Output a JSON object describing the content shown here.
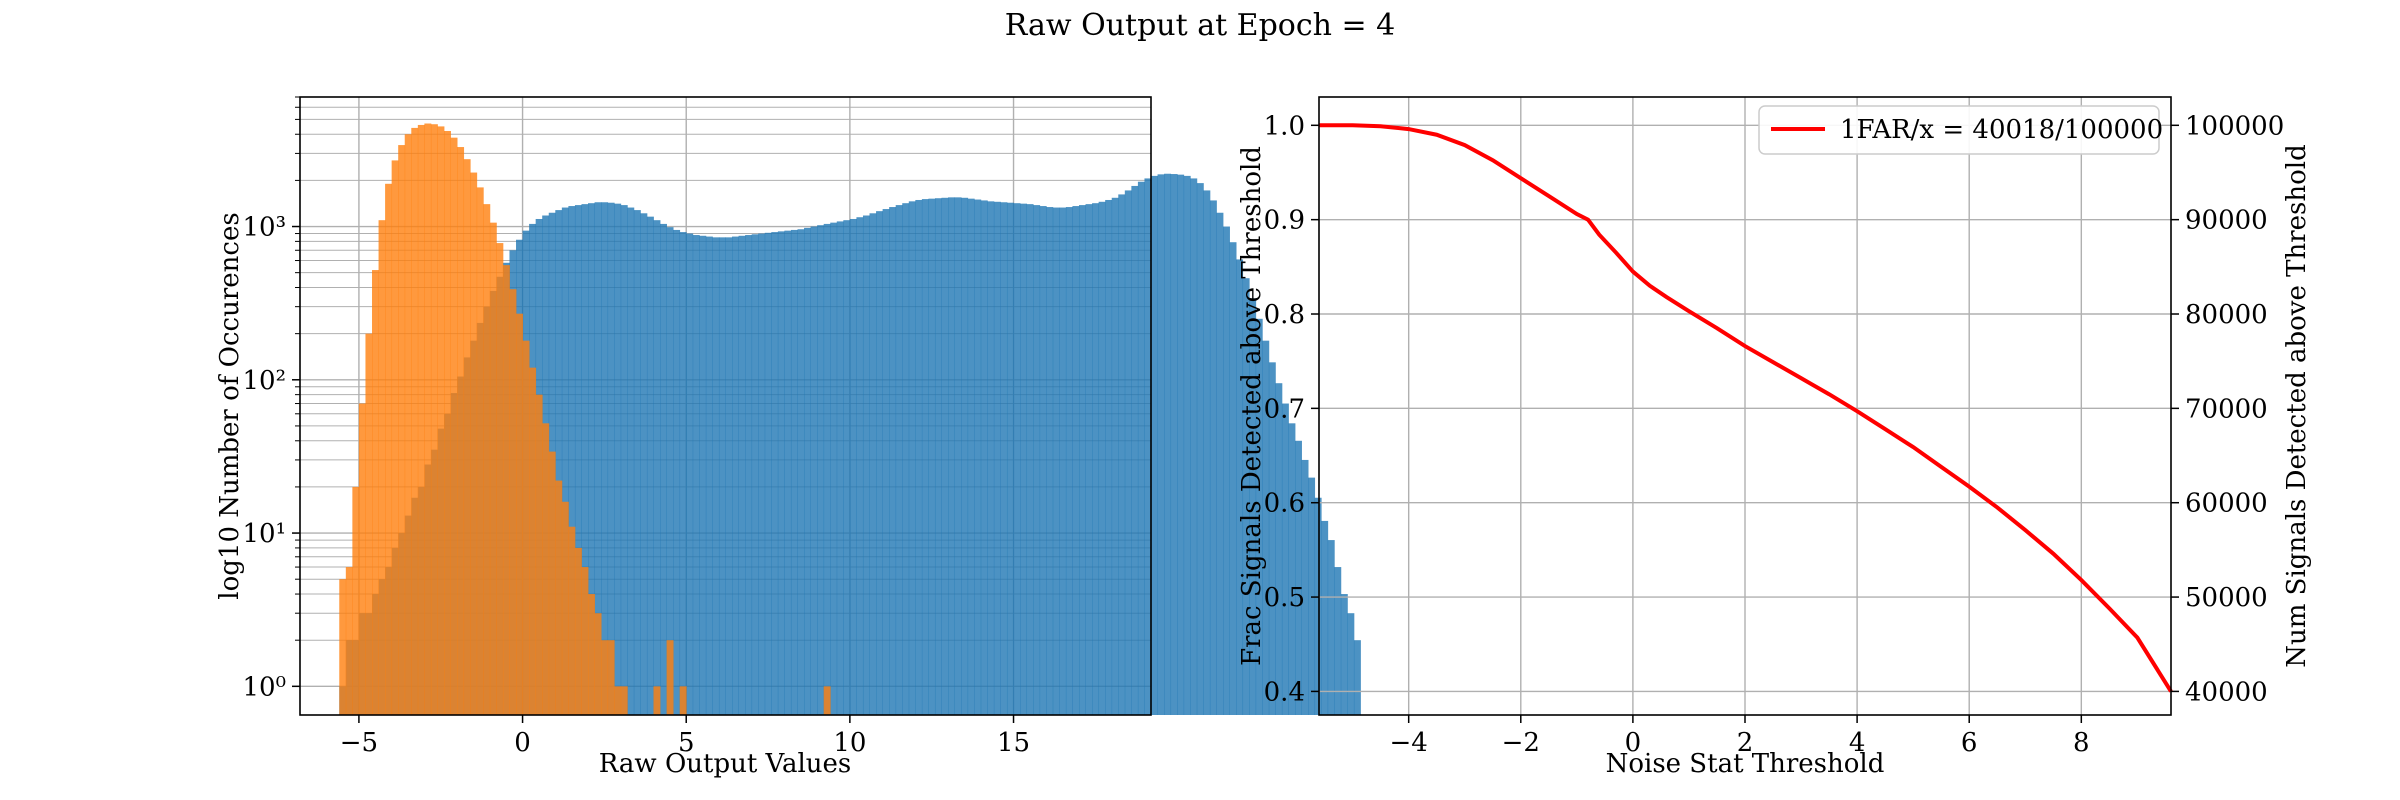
{
  "figure": {
    "suptitle": "Raw Output at Epoch = 4"
  },
  "colors": {
    "blue": "#1f77b4",
    "orange": "#ff7f0e",
    "red": "#ff0000",
    "grid": "#b0b0b0"
  },
  "chart_data": [
    {
      "type": "histogram",
      "title": "",
      "xlabel": "Raw Output Values",
      "ylabel": "log10 Number of Occurences",
      "xlim": [
        -6.8,
        19.2
      ],
      "ylim": [
        0.65,
        7000
      ],
      "yscale": "log",
      "xticks": [
        -5,
        0,
        5,
        10,
        15
      ],
      "xtick_labels": [
        "−5",
        "0",
        "5",
        "10",
        "15"
      ],
      "yticks": [
        1,
        10,
        100,
        1000
      ],
      "ytick_labels": [
        "10⁰",
        "10¹",
        "10²",
        "10³"
      ],
      "grid": true,
      "bins": {
        "start": -5.6,
        "width": 0.2
      },
      "series": [
        {
          "color": "#1f77b4",
          "alpha": 0.8,
          "counts": [
            1,
            2,
            2,
            3,
            3,
            4,
            5,
            6,
            8,
            10,
            13,
            17,
            20,
            28,
            35,
            48,
            60,
            82,
            105,
            140,
            180,
            235,
            300,
            380,
            470,
            580,
            700,
            820,
            940,
            1040,
            1120,
            1180,
            1230,
            1280,
            1330,
            1360,
            1380,
            1400,
            1420,
            1440,
            1440,
            1430,
            1410,
            1380,
            1330,
            1280,
            1220,
            1160,
            1100,
            1040,
            990,
            950,
            920,
            900,
            880,
            870,
            860,
            850,
            850,
            850,
            860,
            870,
            880,
            890,
            900,
            910,
            920,
            930,
            940,
            950,
            960,
            980,
            1000,
            1020,
            1040,
            1060,
            1080,
            1100,
            1120,
            1150,
            1180,
            1220,
            1260,
            1300,
            1340,
            1380,
            1420,
            1460,
            1490,
            1510,
            1520,
            1530,
            1540,
            1550,
            1550,
            1540,
            1520,
            1500,
            1480,
            1460,
            1450,
            1440,
            1430,
            1420,
            1410,
            1400,
            1380,
            1360,
            1340,
            1330,
            1330,
            1340,
            1360,
            1380,
            1400,
            1420,
            1450,
            1490,
            1540,
            1620,
            1720,
            1840,
            1960,
            2060,
            2140,
            2190,
            2210,
            2200,
            2180,
            2140,
            2060,
            1920,
            1720,
            1480,
            1230,
            1000,
            790,
            610,
            460,
            340,
            250,
            180,
            130,
            95,
            70,
            52,
            40,
            30,
            23,
            17,
            12,
            9,
            6,
            4,
            3,
            2
          ]
        },
        {
          "color": "#ff7f0e",
          "alpha": 0.8,
          "counts": [
            5,
            6,
            20,
            70,
            200,
            520,
            1100,
            1900,
            2700,
            3400,
            4000,
            4400,
            4600,
            4700,
            4650,
            4500,
            4200,
            3800,
            3300,
            2750,
            2250,
            1800,
            1400,
            1060,
            780,
            560,
            390,
            270,
            180,
            120,
            80,
            52,
            34,
            22,
            16,
            11,
            8,
            6,
            4,
            3,
            2,
            2,
            1,
            1,
            0,
            0,
            0,
            0,
            1,
            0,
            2,
            0,
            1,
            0,
            0,
            0,
            0,
            0,
            0,
            0,
            0,
            0,
            0,
            0,
            0,
            0,
            0,
            0,
            0,
            0,
            0,
            0,
            0,
            0,
            1
          ]
        }
      ]
    },
    {
      "type": "line",
      "title": "",
      "xlabel": "Noise Stat Threshold",
      "ylabel": "Frac Signals Detected above Threshold",
      "ylabel_right": "Num Signals Detected above Threshold",
      "xlim": [
        -5.6,
        9.6
      ],
      "ylim": [
        0.375,
        1.03
      ],
      "ylim_right": [
        37500,
        103000
      ],
      "xticks": [
        -4,
        -2,
        0,
        2,
        4,
        6,
        8
      ],
      "xtick_labels": [
        "−4",
        "−2",
        "0",
        "2",
        "4",
        "6",
        "8"
      ],
      "yticks": [
        0.4,
        0.5,
        0.6,
        0.7,
        0.8,
        0.9,
        1.0
      ],
      "ytick_labels": [
        "0.4",
        "0.5",
        "0.6",
        "0.7",
        "0.8",
        "0.9",
        "1.0"
      ],
      "yticks_right": [
        40000,
        50000,
        60000,
        70000,
        80000,
        90000,
        100000
      ],
      "ytick_labels_right": [
        "40000",
        "50000",
        "60000",
        "70000",
        "80000",
        "90000",
        "100000"
      ],
      "grid": true,
      "legend": {
        "location": "upper right",
        "entries": [
          "1FAR/x = 40018/100000"
        ]
      },
      "series": [
        {
          "name": "1FAR/x = 40018/100000",
          "color": "#ff0000",
          "x": [
            -5.6,
            -5.0,
            -4.5,
            -4.0,
            -3.5,
            -3.0,
            -2.5,
            -2.0,
            -1.5,
            -1.0,
            -0.8,
            -0.6,
            -0.3,
            0.0,
            0.3,
            0.6,
            1.0,
            1.5,
            2.0,
            2.5,
            3.0,
            3.5,
            4.0,
            4.5,
            5.0,
            5.5,
            6.0,
            6.5,
            7.0,
            7.5,
            8.0,
            8.5,
            9.0,
            9.6
          ],
          "y": [
            1.0,
            1.0,
            0.999,
            0.996,
            0.99,
            0.979,
            0.963,
            0.944,
            0.925,
            0.906,
            0.9,
            0.884,
            0.865,
            0.845,
            0.83,
            0.818,
            0.803,
            0.785,
            0.766,
            0.749,
            0.732,
            0.715,
            0.697,
            0.678,
            0.659,
            0.638,
            0.617,
            0.595,
            0.571,
            0.546,
            0.518,
            0.488,
            0.457,
            0.4
          ]
        }
      ]
    }
  ]
}
